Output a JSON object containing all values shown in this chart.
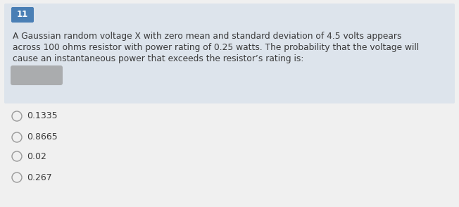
{
  "question_number": "11",
  "question_number_bg": "#4a7fb5",
  "question_number_text_color": "#ffffff",
  "question_box_bg": "#dde4ec",
  "question_text_line1": "A Gaussian random voltage X with zero mean and standard deviation of 4.5 volts appears",
  "question_text_line2": "across 100 ohms resistor with power rating of 0.25 watts. The probability that the voltage will",
  "question_text_line3": "cause an instantaneous power that exceeds the resistor’s rating is:",
  "options": [
    "0.1335",
    "0.8665",
    "0.02",
    "0.267"
  ],
  "background_color": "#f0f0f0",
  "text_color": "#3a3a3a",
  "option_circle_color": "#999999",
  "font_size_question": 8.8,
  "font_size_options": 9.0,
  "font_size_number": 8.5,
  "blob_color": "#9a9a9a",
  "fig_width": 6.52,
  "fig_height": 2.94,
  "dpi": 100
}
